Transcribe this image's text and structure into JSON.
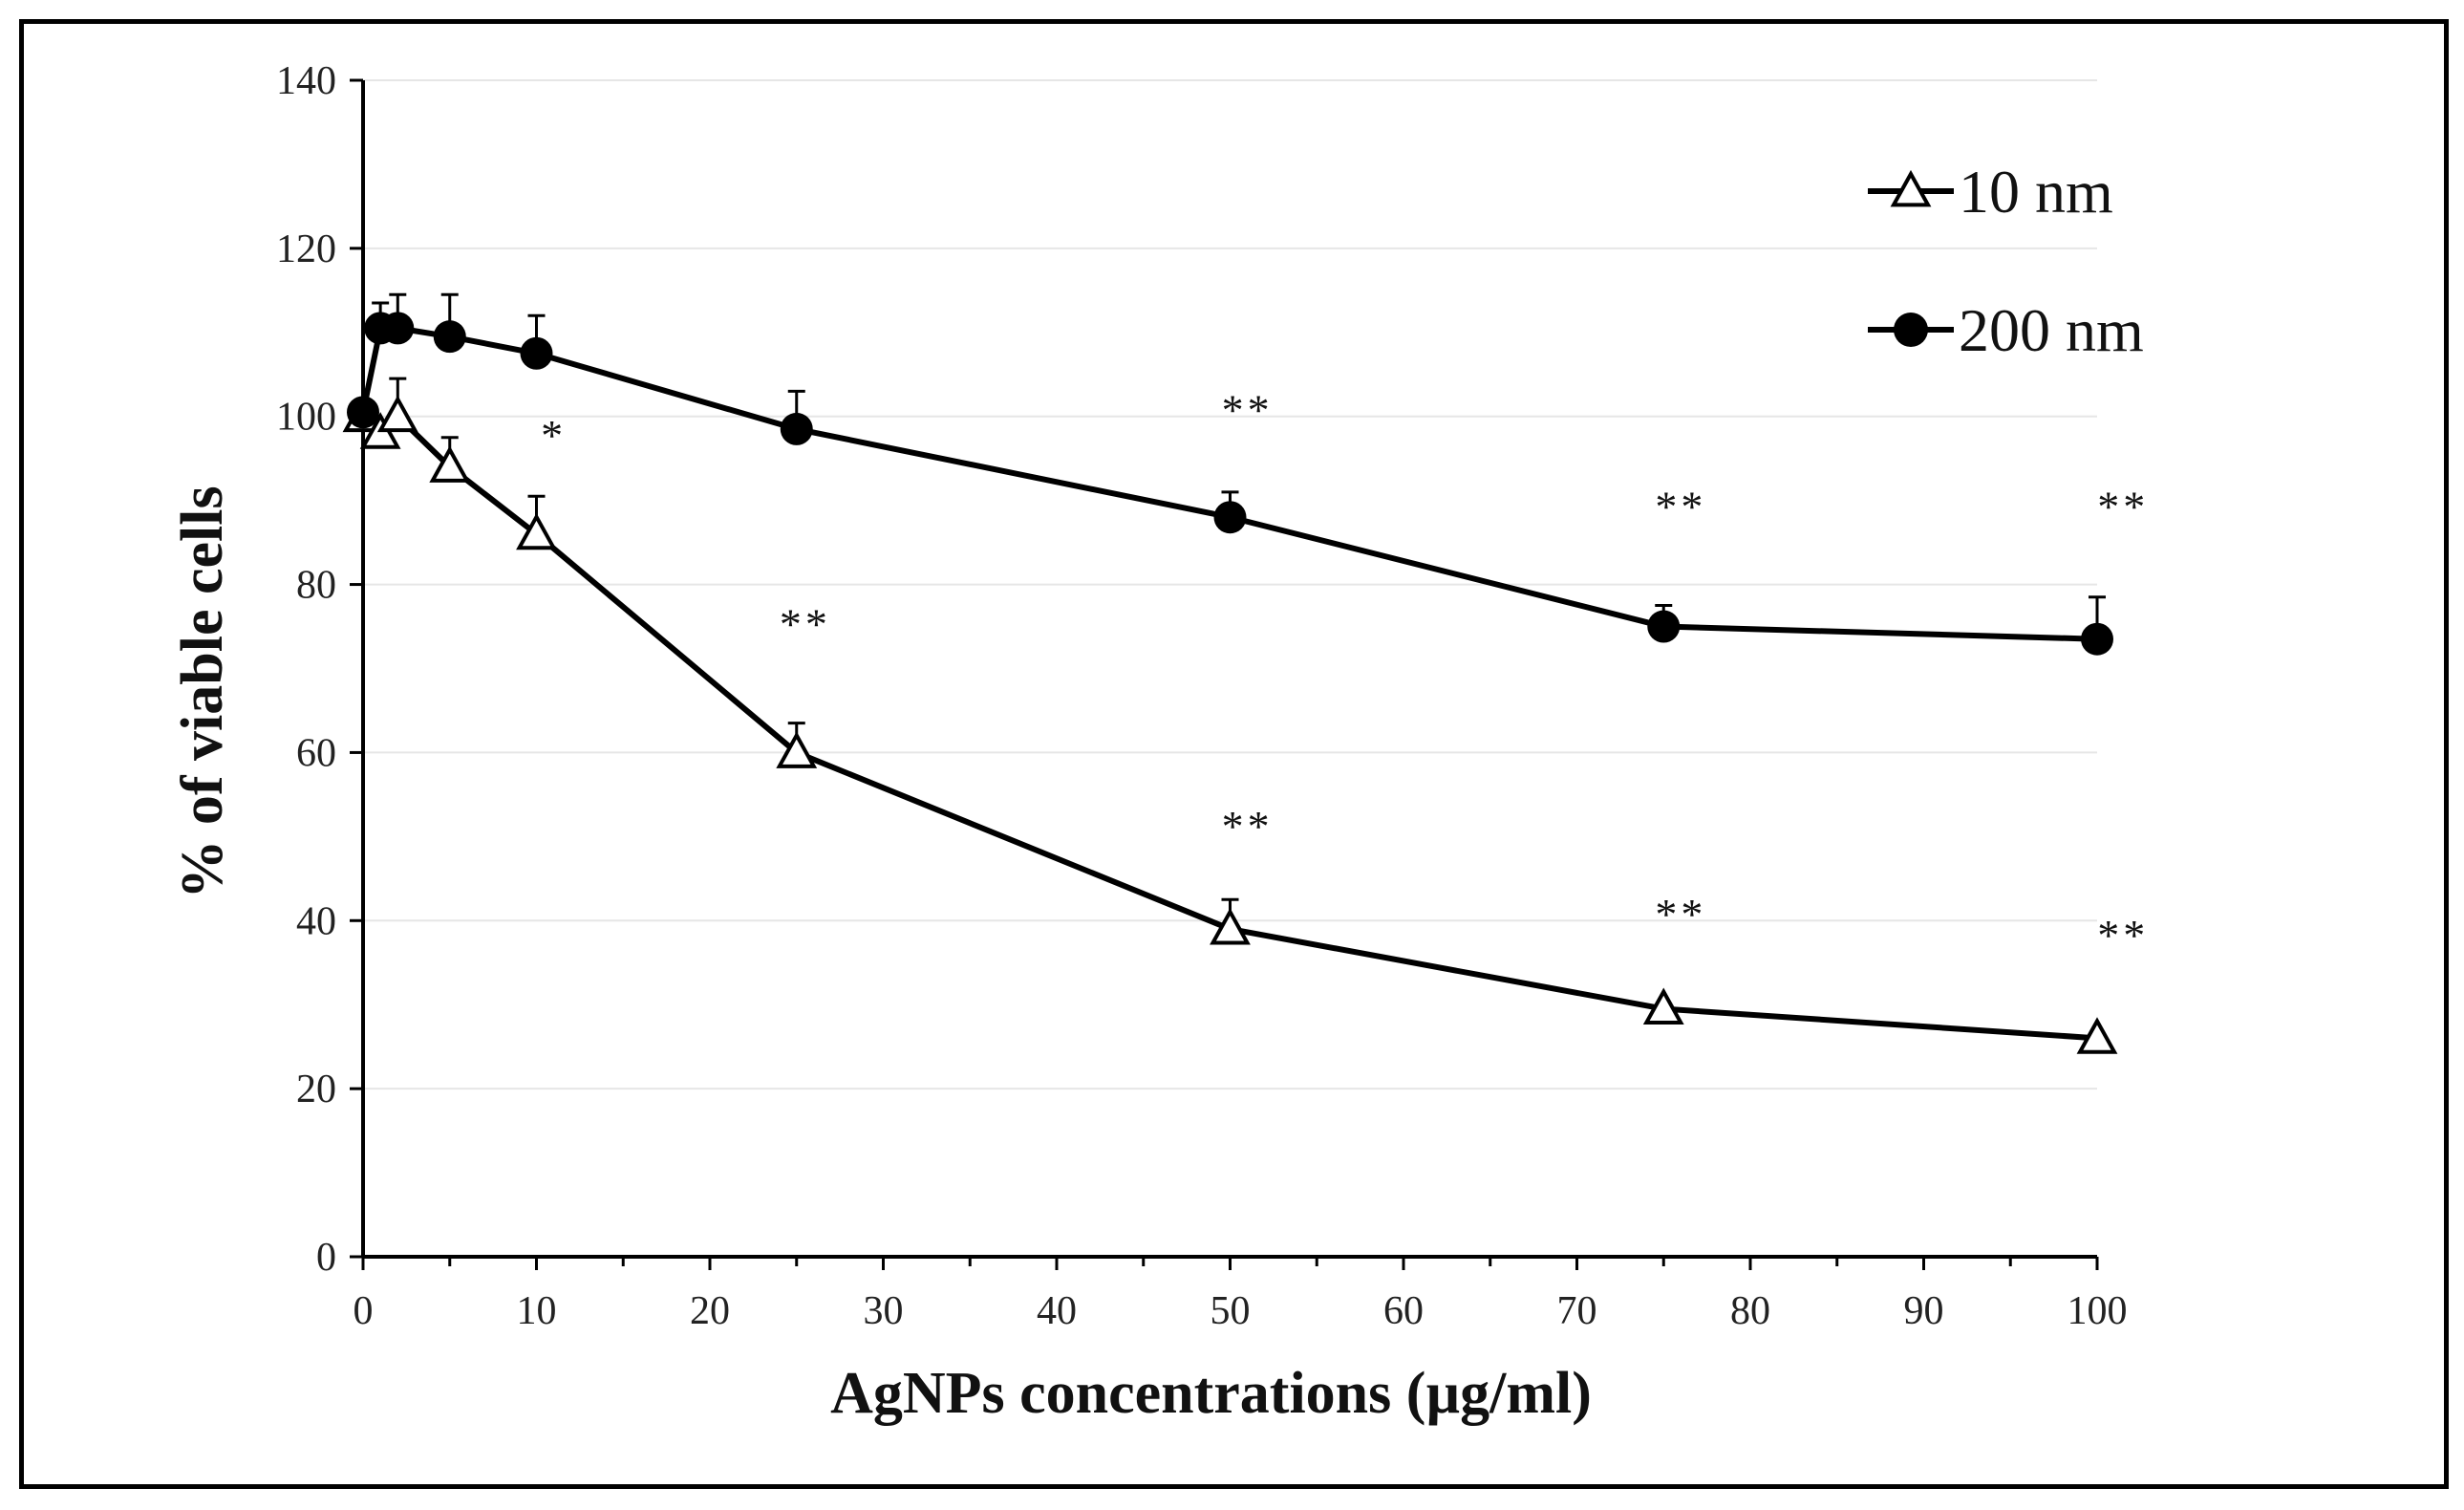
{
  "chart_data": {
    "type": "line",
    "title": "",
    "xlabel": "AgNPs concentrations (µg/ml)",
    "ylabel": "% of viable cells",
    "xlim": [
      0,
      100
    ],
    "ylim": [
      0,
      140
    ],
    "xticks": [
      0,
      10,
      20,
      30,
      40,
      50,
      60,
      70,
      80,
      90,
      100
    ],
    "yticks": [
      0,
      20,
      40,
      60,
      80,
      100,
      120,
      140
    ],
    "grid": "horizontal",
    "legend_position": "top-right",
    "series": [
      {
        "name": "10 nm",
        "marker": "open-triangle",
        "points": [
          {
            "x": 0,
            "y": 100,
            "err": 0
          },
          {
            "x": 1,
            "y": 98,
            "err": 0
          },
          {
            "x": 2,
            "y": 100,
            "err": 4.5
          },
          {
            "x": 5,
            "y": 94,
            "err": 3.5
          },
          {
            "x": 10,
            "y": 86,
            "err": 4.5
          },
          {
            "x": 25,
            "y": 60,
            "err": 3.5
          },
          {
            "x": 50,
            "y": 39,
            "err": 3.5
          },
          {
            "x": 75,
            "y": 29.5,
            "err": 0
          },
          {
            "x": 100,
            "y": 26,
            "err": 0
          }
        ]
      },
      {
        "name": "200 nm",
        "marker": "filled-circle",
        "points": [
          {
            "x": 0,
            "y": 100.5,
            "err": 0
          },
          {
            "x": 1,
            "y": 110.5,
            "err": 3
          },
          {
            "x": 2,
            "y": 110.5,
            "err": 4
          },
          {
            "x": 5,
            "y": 109.5,
            "err": 5
          },
          {
            "x": 10,
            "y": 107.5,
            "err": 4.5
          },
          {
            "x": 25,
            "y": 98.5,
            "err": 4.5
          },
          {
            "x": 50,
            "y": 88,
            "err": 3
          },
          {
            "x": 75,
            "y": 75,
            "err": 2.5
          },
          {
            "x": 100,
            "y": 73.5,
            "err": 5
          }
        ]
      }
    ],
    "annotations": [
      {
        "text": "*",
        "x": 11,
        "y": 96
      },
      {
        "text": "**",
        "x": 25.5,
        "y": 73.5
      },
      {
        "text": "**",
        "x": 51,
        "y": 99
      },
      {
        "text": "**",
        "x": 51,
        "y": 49.5
      },
      {
        "text": "**",
        "x": 76,
        "y": 87.5
      },
      {
        "text": "**",
        "x": 76,
        "y": 39
      },
      {
        "text": "**",
        "x": 101.5,
        "y": 87.5
      },
      {
        "text": "**",
        "x": 101.5,
        "y": 36.5
      }
    ]
  }
}
